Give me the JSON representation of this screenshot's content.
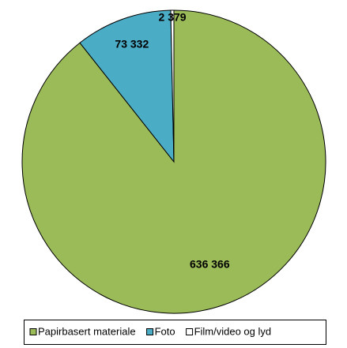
{
  "chart_data": {
    "type": "pie",
    "categories": [
      "Papirbasert materiale",
      "Foto",
      "Film/video og lyd"
    ],
    "values": [
      636366,
      73332,
      2379
    ],
    "value_labels": [
      "636 366",
      "73 332",
      "2 379"
    ],
    "colors": [
      "#9bbb59",
      "#4bacc6",
      "#ffffff"
    ],
    "legend": "bottom"
  }
}
